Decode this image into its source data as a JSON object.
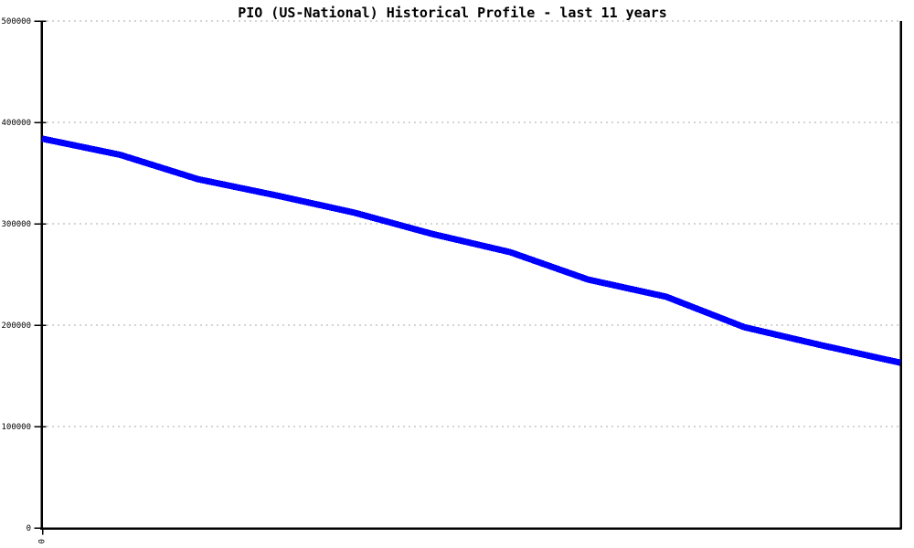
{
  "chart_data": {
    "type": "line",
    "title": "PIO (US-National) Historical Profile - last 11 years",
    "xlabel": "",
    "ylabel": "",
    "x": [
      0,
      1,
      2,
      3,
      4,
      5,
      6,
      7,
      8,
      9,
      10,
      11
    ],
    "series": [
      {
        "name": "PIO (US-National)",
        "color": "#0000ff",
        "values": [
          384000,
          368000,
          344000,
          328000,
          311000,
          290000,
          272000,
          245000,
          228000,
          198000,
          180000,
          163000
        ]
      }
    ],
    "ylim": [
      0,
      500000
    ],
    "yticks": [
      0,
      100000,
      200000,
      300000,
      400000,
      500000
    ],
    "ytick_labels": [
      "0",
      "100000",
      "200000",
      "300000",
      "400000",
      "500000"
    ],
    "visible_xtick_label": "0",
    "grid": "horizontal-dashed",
    "legend_position": "none",
    "background_color": "#ffffff",
    "axis_color": "#000000",
    "grid_color": "#a8a8a8",
    "tick_label_color": "#000000"
  }
}
